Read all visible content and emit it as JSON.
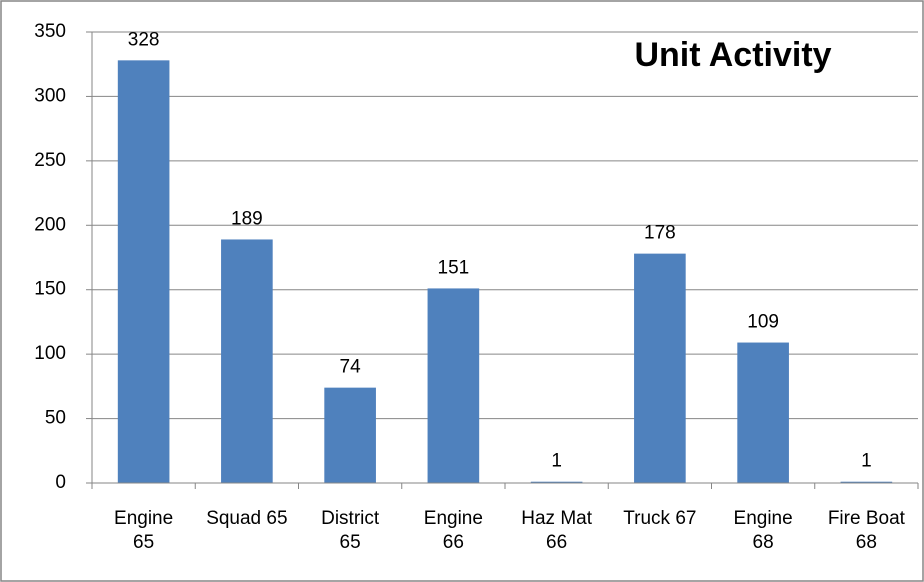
{
  "chart_data": {
    "type": "bar",
    "title": "Unit Activity",
    "categories": [
      "Engine 65",
      "Squad 65",
      "District 65",
      "Engine 66",
      "Haz Mat 66",
      "Truck  67",
      "Engine 68",
      "Fire Boat 68"
    ],
    "values": [
      328,
      189,
      74,
      151,
      1,
      178,
      109,
      1
    ],
    "color": "#4f81bd",
    "ylim": [
      0,
      350
    ],
    "yticks": [
      0,
      50,
      100,
      150,
      200,
      250,
      300,
      350
    ],
    "grid": true
  }
}
